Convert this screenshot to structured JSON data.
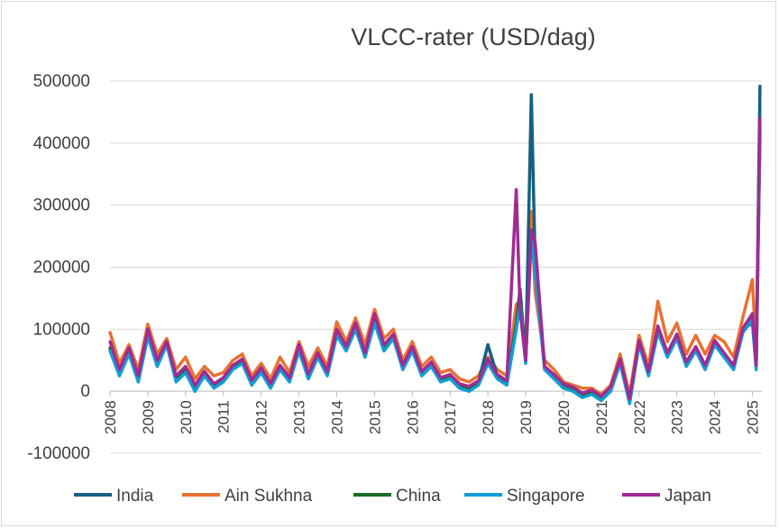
{
  "chart_data": {
    "type": "line",
    "title": "VLCC-rater (USD/dag)",
    "xlabel": "",
    "ylabel": "",
    "ylim": [
      -100000,
      500000
    ],
    "yticks": [
      -100000,
      0,
      100000,
      200000,
      300000,
      400000,
      500000
    ],
    "xlim": [
      2008,
      2025.25
    ],
    "xticks": [
      "2008",
      "2009",
      "2010",
      "2011",
      "2012",
      "2013",
      "2014",
      "2015",
      "2016",
      "2017",
      "2018",
      "2019",
      "2020",
      "2021",
      "2022",
      "2023",
      "2024",
      "2025"
    ],
    "legend_position": "bottom",
    "grid": true,
    "x": [
      2008.0,
      2008.25,
      2008.5,
      2008.75,
      2009.0,
      2009.25,
      2009.5,
      2009.75,
      2010.0,
      2010.25,
      2010.5,
      2010.75,
      2011.0,
      2011.25,
      2011.5,
      2011.75,
      2012.0,
      2012.25,
      2012.5,
      2012.75,
      2013.0,
      2013.25,
      2013.5,
      2013.75,
      2014.0,
      2014.25,
      2014.5,
      2014.75,
      2015.0,
      2015.25,
      2015.5,
      2015.75,
      2016.0,
      2016.25,
      2016.5,
      2016.75,
      2017.0,
      2017.25,
      2017.5,
      2017.75,
      2018.0,
      2018.25,
      2018.5,
      2018.75,
      2018.85,
      2019.0,
      2019.15,
      2019.25,
      2019.5,
      2019.75,
      2020.0,
      2020.25,
      2020.5,
      2020.75,
      2021.0,
      2021.25,
      2021.5,
      2021.75,
      2022.0,
      2022.25,
      2022.5,
      2022.75,
      2023.0,
      2023.25,
      2023.5,
      2023.75,
      2024.0,
      2024.25,
      2024.5,
      2024.75,
      2025.0,
      2025.1,
      2025.2
    ],
    "series": [
      {
        "name": "India",
        "color": "#156082",
        "values": [
          70000,
          30000,
          65000,
          20000,
          95000,
          45000,
          80000,
          20000,
          35000,
          5000,
          30000,
          10000,
          20000,
          40000,
          50000,
          15000,
          35000,
          10000,
          40000,
          20000,
          70000,
          25000,
          60000,
          30000,
          95000,
          70000,
          105000,
          60000,
          115000,
          70000,
          90000,
          40000,
          70000,
          30000,
          45000,
          20000,
          25000,
          10000,
          5000,
          15000,
          75000,
          25000,
          15000,
          110000,
          165000,
          50000,
          478000,
          210000,
          40000,
          25000,
          10000,
          5000,
          -5000,
          0,
          -10000,
          5000,
          50000,
          -15000,
          80000,
          30000,
          100000,
          60000,
          90000,
          45000,
          70000,
          40000,
          80000,
          60000,
          40000,
          100000,
          110000,
          40000,
          492000
        ]
      },
      {
        "name": "Ain Sukhna",
        "color": "#e97132",
        "values": [
          95000,
          45000,
          75000,
          35000,
          108000,
          60000,
          85000,
          35000,
          55000,
          20000,
          40000,
          25000,
          30000,
          50000,
          60000,
          25000,
          45000,
          20000,
          55000,
          30000,
          80000,
          40000,
          70000,
          40000,
          112000,
          80000,
          118000,
          75000,
          132000,
          85000,
          100000,
          50000,
          80000,
          40000,
          55000,
          30000,
          35000,
          20000,
          15000,
          25000,
          55000,
          35000,
          25000,
          140000,
          145000,
          60000,
          290000,
          160000,
          50000,
          35000,
          15000,
          10000,
          5000,
          5000,
          -5000,
          10000,
          60000,
          -5000,
          90000,
          40000,
          145000,
          80000,
          110000,
          60000,
          90000,
          60000,
          90000,
          80000,
          55000,
          120000,
          180000,
          60000,
          458000
        ]
      },
      {
        "name": "China",
        "color": "#196b24",
        "values": [
          68000,
          28000,
          62000,
          18000,
          90000,
          42000,
          78000,
          18000,
          32000,
          3000,
          28000,
          8000,
          18000,
          38000,
          48000,
          13000,
          33000,
          8000,
          38000,
          18000,
          68000,
          23000,
          58000,
          28000,
          92000,
          68000,
          102000,
          58000,
          112000,
          68000,
          88000,
          38000,
          68000,
          28000,
          43000,
          18000,
          23000,
          8000,
          3000,
          13000,
          50000,
          23000,
          13000,
          105000,
          150000,
          48000,
          260000,
          200000,
          38000,
          23000,
          8000,
          3000,
          -7000,
          -2000,
          -12000,
          3000,
          48000,
          -17000,
          78000,
          28000,
          98000,
          58000,
          88000,
          43000,
          68000,
          38000,
          78000,
          58000,
          38000,
          98000,
          120000,
          38000,
          420000
        ]
      },
      {
        "name": "Singapore",
        "color": "#0f9ed5",
        "values": [
          65000,
          25000,
          60000,
          15000,
          88000,
          40000,
          75000,
          15000,
          30000,
          0,
          25000,
          5000,
          15000,
          35000,
          45000,
          10000,
          30000,
          5000,
          35000,
          15000,
          65000,
          20000,
          55000,
          25000,
          90000,
          65000,
          100000,
          55000,
          110000,
          65000,
          85000,
          35000,
          65000,
          25000,
          40000,
          15000,
          20000,
          5000,
          0,
          10000,
          45000,
          20000,
          10000,
          100000,
          140000,
          45000,
          250000,
          190000,
          35000,
          20000,
          5000,
          0,
          -10000,
          -5000,
          -15000,
          0,
          45000,
          -20000,
          75000,
          25000,
          95000,
          55000,
          85000,
          40000,
          65000,
          35000,
          75000,
          55000,
          35000,
          95000,
          115000,
          35000,
          410000
        ]
      },
      {
        "name": "Japan",
        "color": "#a02b93",
        "values": [
          80000,
          35000,
          70000,
          25000,
          100000,
          50000,
          80000,
          25000,
          40000,
          10000,
          32000,
          12000,
          22000,
          42000,
          52000,
          18000,
          38000,
          12000,
          42000,
          22000,
          75000,
          28000,
          62000,
          32000,
          100000,
          72000,
          110000,
          62000,
          125000,
          75000,
          92000,
          42000,
          72000,
          32000,
          47000,
          22000,
          27000,
          12000,
          8000,
          17000,
          52000,
          27000,
          17000,
          325000,
          130000,
          50000,
          260000,
          240000,
          40000,
          27000,
          12000,
          7000,
          -3000,
          2000,
          -8000,
          7000,
          52000,
          -12000,
          82000,
          32000,
          105000,
          62000,
          92000,
          47000,
          72000,
          42000,
          82000,
          62000,
          42000,
          102000,
          125000,
          42000,
          440000
        ]
      }
    ]
  }
}
